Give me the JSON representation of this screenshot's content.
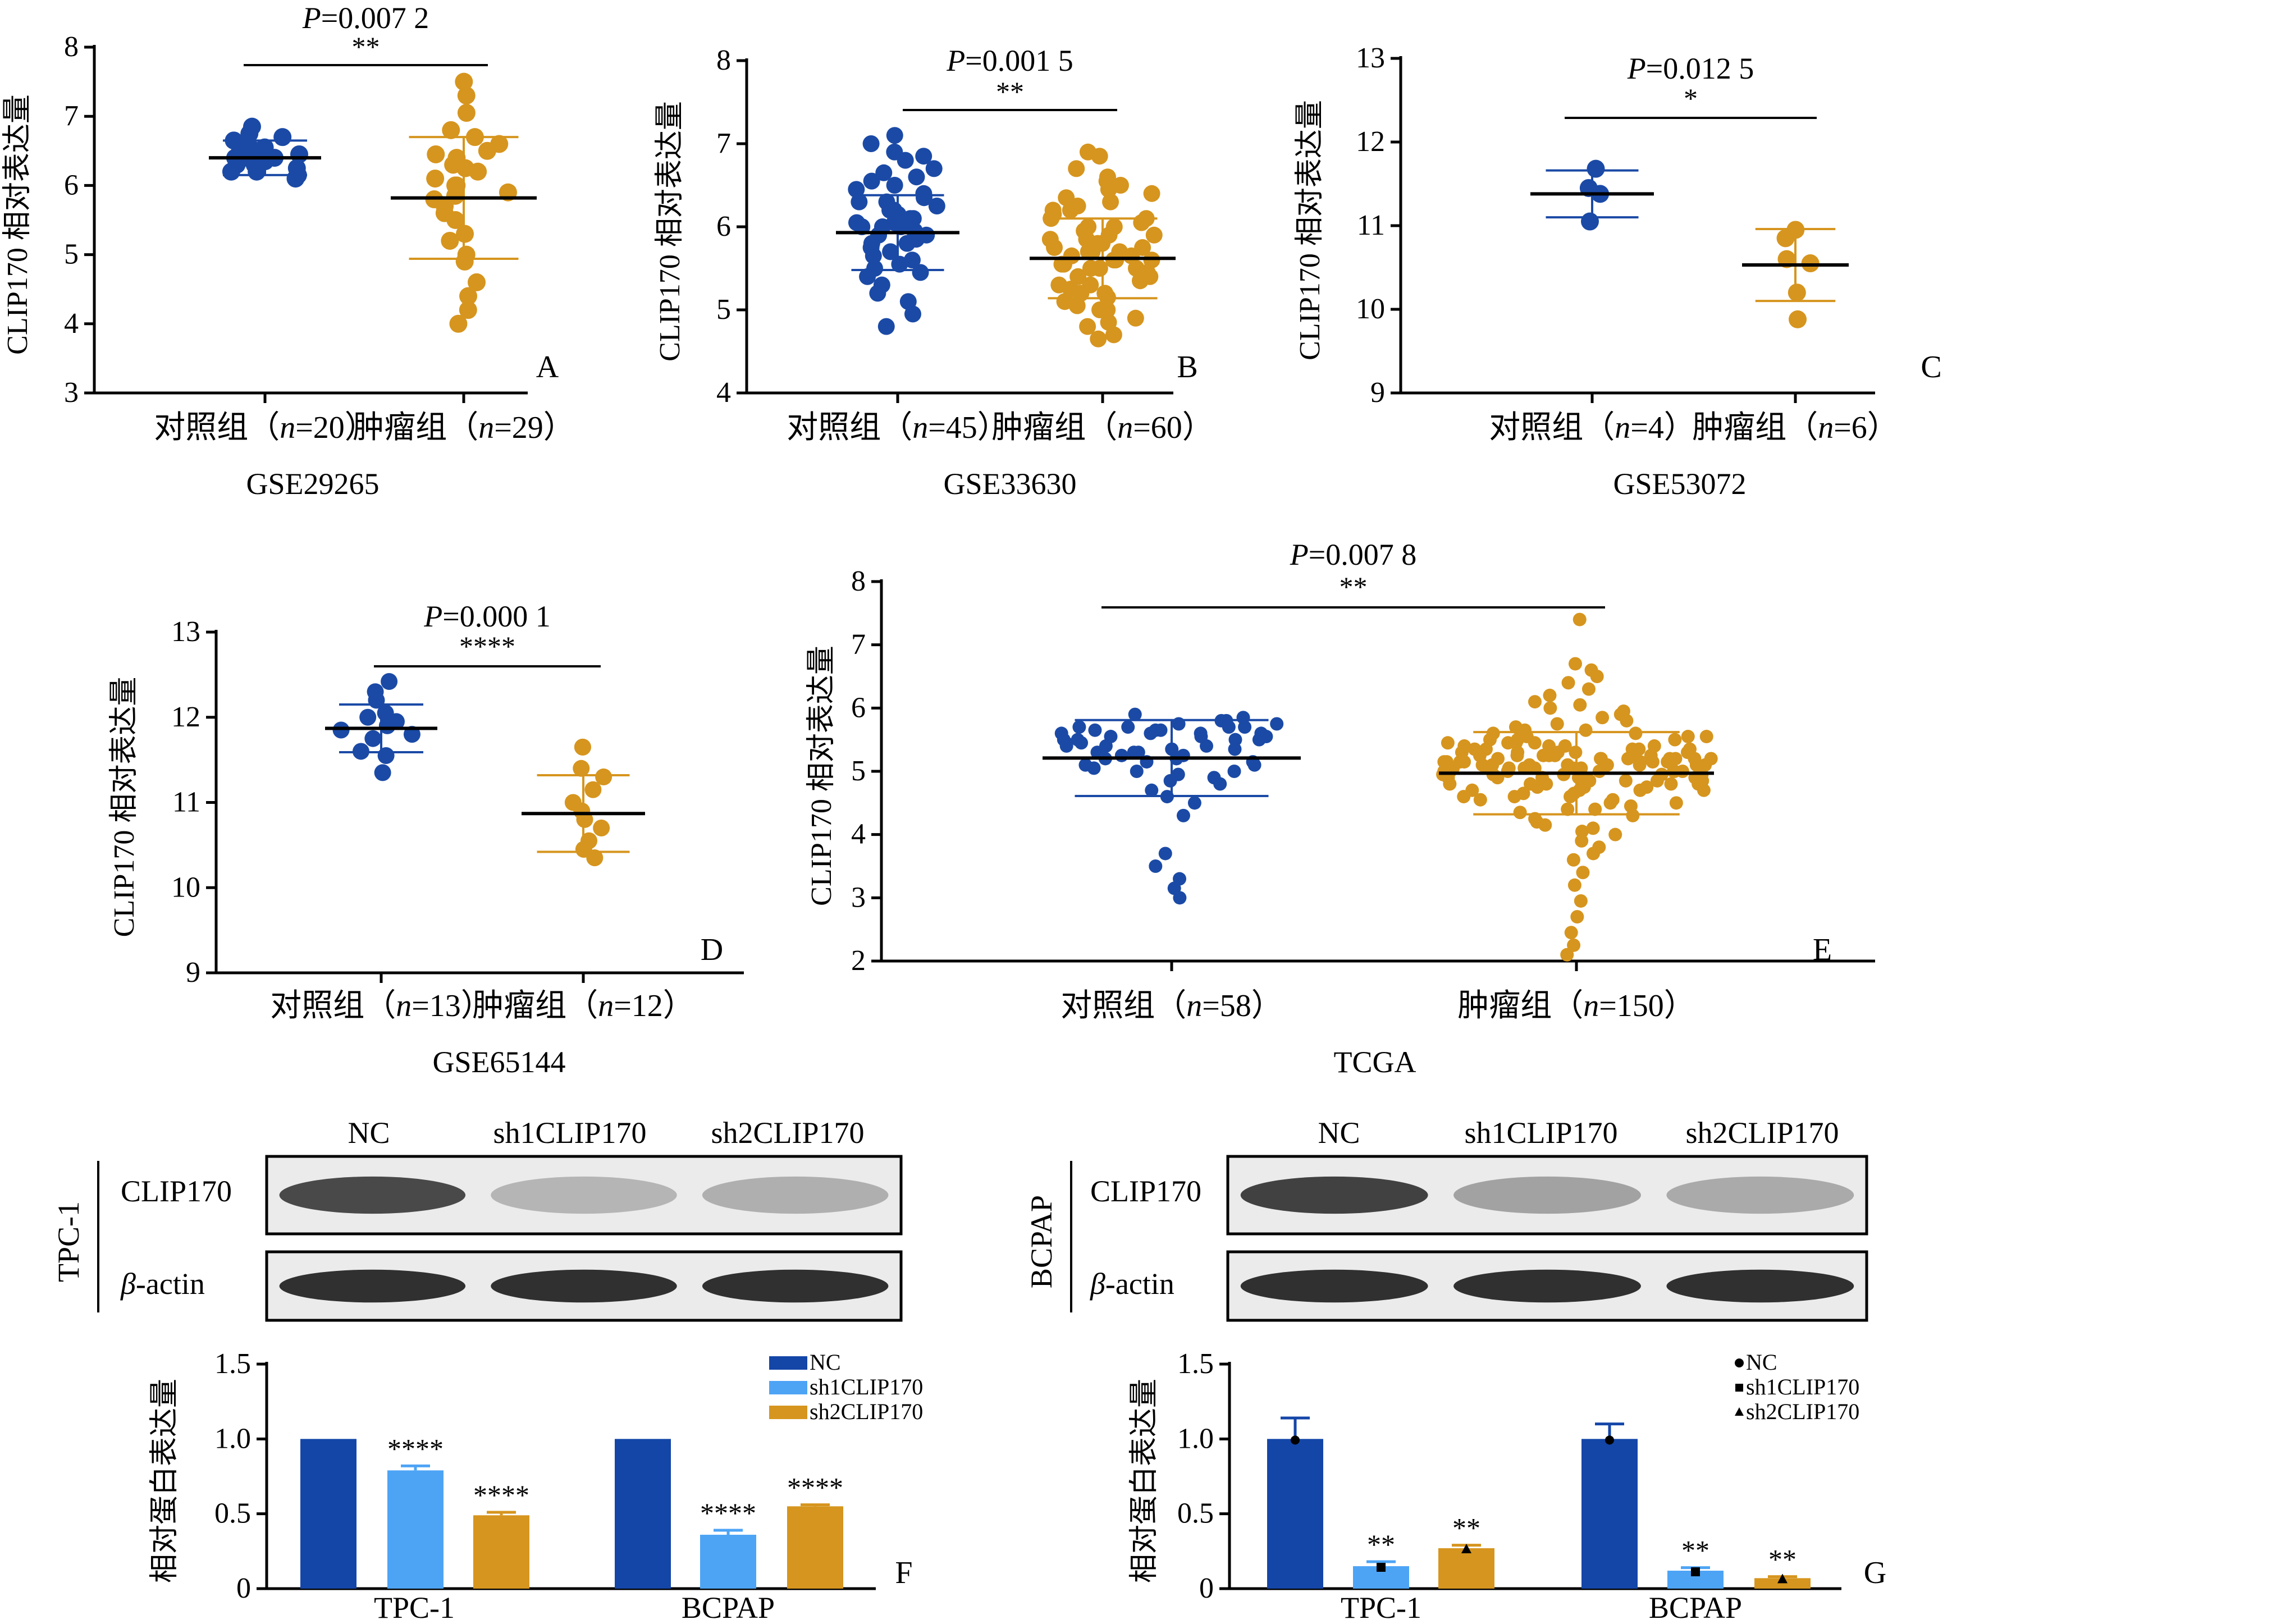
{
  "colors": {
    "control": "#1b4aa6",
    "tumor": "#d6951e",
    "nc_bar": "#1446a8",
    "sh1_bar": "#4da4f5",
    "sh2_bar": "#d6951e",
    "band": "#1c1c1c"
  },
  "chart_data": [
    {
      "type": "scatter",
      "panel": "A",
      "dataset": "GSE29265",
      "ylabel": "CLIP170 相对表达量",
      "ylim": [
        3,
        8
      ],
      "yticks": [
        "3",
        "4",
        "5",
        "6",
        "7",
        "8"
      ],
      "p_label": "P",
      "p_value": "=0.007 2",
      "sig": "**",
      "groups": [
        {
          "label": "对照组（",
          "n_label": "n",
          "n_value": "=20）",
          "mean": 6.4,
          "sd": 0.25,
          "values": [
            6.1,
            6.15,
            6.2,
            6.2,
            6.25,
            6.3,
            6.3,
            6.35,
            6.4,
            6.4,
            6.4,
            6.45,
            6.5,
            6.5,
            6.55,
            6.6,
            6.65,
            6.7,
            6.75,
            6.85
          ]
        },
        {
          "label": "肿瘤组（",
          "n_label": "n",
          "n_value": "=29）",
          "mean": 5.82,
          "sd": 0.88,
          "values": [
            4.0,
            4.2,
            4.4,
            4.6,
            4.9,
            5.0,
            5.2,
            5.3,
            5.5,
            5.6,
            5.7,
            5.8,
            5.85,
            5.9,
            6.0,
            6.0,
            6.1,
            6.2,
            6.25,
            6.3,
            6.4,
            6.45,
            6.5,
            6.6,
            6.7,
            6.8,
            7.05,
            7.3,
            7.5
          ]
        }
      ]
    },
    {
      "type": "scatter",
      "panel": "B",
      "dataset": "GSE33630",
      "ylabel": "CLIP170 相对表达量",
      "ylim": [
        4,
        8
      ],
      "yticks": [
        "4",
        "5",
        "6",
        "7",
        "8"
      ],
      "p_label": "P",
      "p_value": "=0.001 5",
      "sig": "**",
      "groups": [
        {
          "label": "对照组（",
          "n_label": "n",
          "n_value": "=45）",
          "mean": 5.93,
          "sd": 0.45,
          "values": [
            4.8,
            4.95,
            5.1,
            5.2,
            5.3,
            5.4,
            5.45,
            5.5,
            5.55,
            5.6,
            5.65,
            5.7,
            5.75,
            5.8,
            5.8,
            5.85,
            5.9,
            5.9,
            5.95,
            6.0,
            6.0,
            6.0,
            6.05,
            6.05,
            6.1,
            6.1,
            6.15,
            6.2,
            6.2,
            6.25,
            6.3,
            6.3,
            6.35,
            6.4,
            6.45,
            6.5,
            6.55,
            6.6,
            6.65,
            6.7,
            6.8,
            6.85,
            6.9,
            7.0,
            7.1
          ]
        },
        {
          "label": "肿瘤组（",
          "n_label": "n",
          "n_value": "=60）",
          "mean": 5.62,
          "sd": 0.48,
          "values": [
            4.65,
            4.7,
            4.8,
            4.85,
            4.9,
            5.0,
            5.0,
            5.05,
            5.1,
            5.15,
            5.2,
            5.2,
            5.25,
            5.3,
            5.3,
            5.35,
            5.4,
            5.4,
            5.45,
            5.5,
            5.5,
            5.5,
            5.55,
            5.55,
            5.6,
            5.6,
            5.6,
            5.65,
            5.65,
            5.7,
            5.7,
            5.7,
            5.75,
            5.75,
            5.8,
            5.8,
            5.85,
            5.85,
            5.9,
            5.9,
            5.95,
            6.0,
            6.0,
            6.05,
            6.1,
            6.1,
            6.15,
            6.2,
            6.2,
            6.25,
            6.3,
            6.35,
            6.4,
            6.45,
            6.5,
            6.55,
            6.6,
            6.7,
            6.85,
            6.9
          ]
        }
      ]
    },
    {
      "type": "scatter",
      "panel": "C",
      "dataset": "GSE53072",
      "ylabel": "CLIP170 相对表达量",
      "ylim": [
        9,
        13
      ],
      "yticks": [
        "9",
        "10",
        "11",
        "12",
        "13"
      ],
      "p_label": "P",
      "p_value": "=0.012 5",
      "sig": "*",
      "groups": [
        {
          "label": "对照组（",
          "n_label": "n",
          "n_value": "=4）",
          "mean": 11.38,
          "sd": 0.28,
          "values": [
            11.05,
            11.38,
            11.45,
            11.68
          ]
        },
        {
          "label": "肿瘤组（",
          "n_label": "n",
          "n_value": "=6）",
          "mean": 10.53,
          "sd": 0.43,
          "values": [
            9.88,
            10.2,
            10.55,
            10.6,
            10.85,
            10.95
          ]
        }
      ]
    },
    {
      "type": "scatter",
      "panel": "D",
      "dataset": "GSE65144",
      "ylabel": "CLIP170 相对表达量",
      "ylim": [
        9,
        13
      ],
      "yticks": [
        "9",
        "10",
        "11",
        "12",
        "13"
      ],
      "p_label": "P",
      "p_value": "=0.000 1",
      "sig": "****",
      "groups": [
        {
          "label": "对照组（",
          "n_label": "n",
          "n_value": "=13）",
          "mean": 11.87,
          "sd": 0.28,
          "values": [
            11.35,
            11.55,
            11.6,
            11.75,
            11.8,
            11.85,
            11.9,
            11.95,
            12.0,
            12.05,
            12.2,
            12.3,
            12.42
          ]
        },
        {
          "label": "肿瘤组（",
          "n_label": "n",
          "n_value": "=12）",
          "mean": 10.87,
          "sd": 0.45,
          "values": [
            10.35,
            10.45,
            10.55,
            10.7,
            10.8,
            10.9,
            11.0,
            11.15,
            11.3,
            11.4,
            11.65,
            11.65
          ]
        }
      ]
    },
    {
      "type": "scatter",
      "panel": "E",
      "dataset": "TCGA",
      "ylabel": "CLIP170 相对表达量",
      "ylim": [
        2,
        8
      ],
      "yticks": [
        "2",
        "3",
        "4",
        "5",
        "6",
        "7",
        "8"
      ],
      "p_label": "P",
      "p_value": "=0.007 8",
      "sig": "**",
      "groups": [
        {
          "label": "对照组（",
          "n_label": "n",
          "n_value": "=58）",
          "mean": 5.21,
          "sd": 0.6,
          "values": [
            3.0,
            3.15,
            3.3,
            3.5,
            3.7,
            4.3,
            4.5,
            4.6,
            4.7,
            4.8,
            4.85,
            4.9,
            4.95,
            5.0,
            5.0,
            5.05,
            5.1,
            5.1,
            5.15,
            5.15,
            5.2,
            5.2,
            5.25,
            5.25,
            5.3,
            5.3,
            5.3,
            5.35,
            5.35,
            5.4,
            5.4,
            5.4,
            5.45,
            5.45,
            5.5,
            5.5,
            5.5,
            5.5,
            5.55,
            5.55,
            5.55,
            5.6,
            5.6,
            5.6,
            5.6,
            5.65,
            5.65,
            5.65,
            5.7,
            5.7,
            5.7,
            5.7,
            5.75,
            5.75,
            5.8,
            5.8,
            5.85,
            5.9
          ]
        },
        {
          "label": "肿瘤组（",
          "n_label": "n",
          "n_value": "=150）",
          "mean": 4.97,
          "sd": 0.65,
          "values": [
            2.1,
            2.25,
            2.45,
            2.7,
            2.95,
            3.2,
            3.4,
            3.6,
            3.7,
            3.8,
            3.9,
            4.0,
            4.05,
            4.1,
            4.15,
            4.2,
            4.25,
            4.3,
            4.35,
            4.4,
            4.4,
            4.45,
            4.5,
            4.5,
            4.55,
            4.55,
            4.6,
            4.6,
            4.65,
            4.65,
            4.7,
            4.7,
            4.7,
            4.75,
            4.75,
            4.75,
            4.8,
            4.8,
            4.8,
            4.8,
            4.85,
            4.85,
            4.85,
            4.85,
            4.9,
            4.9,
            4.9,
            4.9,
            4.9,
            4.95,
            4.95,
            4.95,
            4.95,
            4.95,
            5.0,
            5.0,
            5.0,
            5.0,
            5.0,
            5.0,
            5.05,
            5.05,
            5.05,
            5.05,
            5.05,
            5.05,
            5.1,
            5.1,
            5.1,
            5.1,
            5.1,
            5.1,
            5.1,
            5.15,
            5.15,
            5.15,
            5.15,
            5.15,
            5.15,
            5.2,
            5.2,
            5.2,
            5.2,
            5.2,
            5.2,
            5.25,
            5.25,
            5.25,
            5.25,
            5.25,
            5.3,
            5.3,
            5.3,
            5.3,
            5.3,
            5.35,
            5.35,
            5.35,
            5.35,
            5.4,
            5.4,
            5.4,
            5.4,
            5.45,
            5.45,
            5.45,
            5.5,
            5.5,
            5.5,
            5.55,
            5.55,
            5.6,
            5.6,
            5.65,
            5.65,
            5.7,
            5.75,
            5.8,
            5.85,
            5.9,
            5.95,
            6.0,
            6.05,
            6.1,
            6.2,
            6.3,
            6.4,
            6.5,
            6.6,
            6.7,
            7.4,
            4.6,
            4.7,
            4.8,
            4.9,
            5.0,
            5.1,
            5.2,
            5.3,
            5.0,
            5.1,
            5.2,
            4.95,
            5.05,
            5.15,
            5.25,
            4.85,
            5.35,
            5.45,
            5.55
          ]
        }
      ]
    },
    {
      "type": "bar",
      "panel": "F",
      "ylabel": "相对蛋白表达量",
      "ylim": [
        0,
        1.5
      ],
      "yticks": [
        "0",
        "0.5",
        "1.0",
        "1.5"
      ],
      "categories": [
        "TPC-1",
        "BCPAP"
      ],
      "legend_style": "box",
      "series": [
        {
          "name": "NC",
          "values": [
            1.0,
            1.0
          ],
          "err": [
            0,
            0
          ],
          "sig": [
            "",
            ""
          ]
        },
        {
          "name": "sh1CLIP170",
          "values": [
            0.79,
            0.36
          ],
          "err": [
            0.03,
            0.03
          ],
          "sig": [
            "****",
            "****"
          ]
        },
        {
          "name": "sh2CLIP170",
          "values": [
            0.49,
            0.55
          ],
          "err": [
            0.02,
            0.01
          ],
          "sig": [
            "****",
            "****"
          ]
        }
      ]
    },
    {
      "type": "bar",
      "panel": "G",
      "ylabel": "相对蛋白表达量",
      "ylim": [
        0,
        1.5
      ],
      "yticks": [
        "0",
        "0.5",
        "1.0",
        "1.5"
      ],
      "categories": [
        "TPC-1",
        "BCPAP"
      ],
      "legend_style": "marker",
      "series": [
        {
          "name": "NC",
          "values": [
            1.0,
            1.0
          ],
          "err": [
            0.14,
            0.1
          ],
          "sig": [
            "",
            ""
          ]
        },
        {
          "name": "sh1CLIP170",
          "values": [
            0.15,
            0.12
          ],
          "err": [
            0.03,
            0.02
          ],
          "sig": [
            "**",
            "**"
          ]
        },
        {
          "name": "sh2CLIP170",
          "values": [
            0.27,
            0.07
          ],
          "err": [
            0.02,
            0.01
          ],
          "sig": [
            "**",
            "**"
          ]
        }
      ]
    }
  ],
  "western_blots": [
    {
      "cell_line": "TPC-1",
      "columns": [
        "NC",
        "sh1CLIP170",
        "sh2CLIP170"
      ],
      "target_label": "CLIP170",
      "control_greek": "β",
      "control_suffix": "-actin",
      "target_intensity": [
        0.85,
        0.18,
        0.22
      ],
      "control_intensity": [
        1.0,
        1.0,
        1.0
      ]
    },
    {
      "cell_line": "BCPAP",
      "columns": [
        "NC",
        "sh1CLIP170",
        "sh2CLIP170"
      ],
      "target_label": "CLIP170",
      "control_greek": "β",
      "control_suffix": "-actin",
      "target_intensity": [
        0.9,
        0.3,
        0.25
      ],
      "control_intensity": [
        1.0,
        1.0,
        1.0
      ]
    }
  ]
}
